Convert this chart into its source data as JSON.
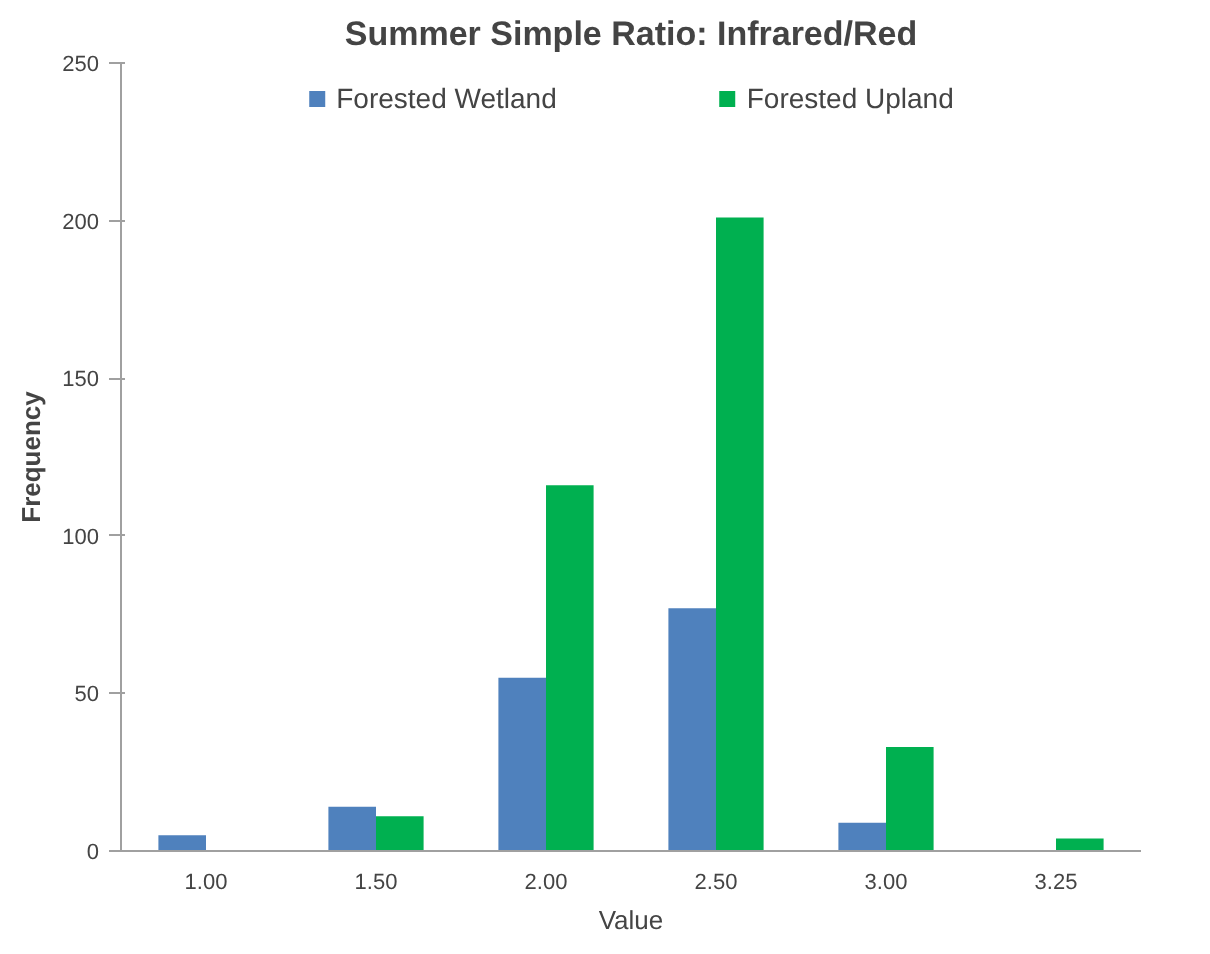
{
  "chart_data": {
    "type": "bar",
    "title": "Summer Simple Ratio: Infrared/Red",
    "xlabel": "Value",
    "ylabel": "Frequency",
    "categories": [
      "1.00",
      "1.50",
      "2.00",
      "2.50",
      "3.00",
      "3.25"
    ],
    "series": [
      {
        "name": "Forested Wetland",
        "color": "#4f81bd",
        "values": [
          5,
          14,
          55,
          77,
          9,
          0
        ]
      },
      {
        "name": "Forested Upland",
        "color": "#00b050",
        "values": [
          0,
          11,
          116,
          201,
          33,
          4
        ]
      }
    ],
    "ylim": [
      0,
      250
    ],
    "yticks": [
      0,
      50,
      100,
      150,
      200,
      250
    ],
    "grid": false,
    "legend": "top"
  }
}
